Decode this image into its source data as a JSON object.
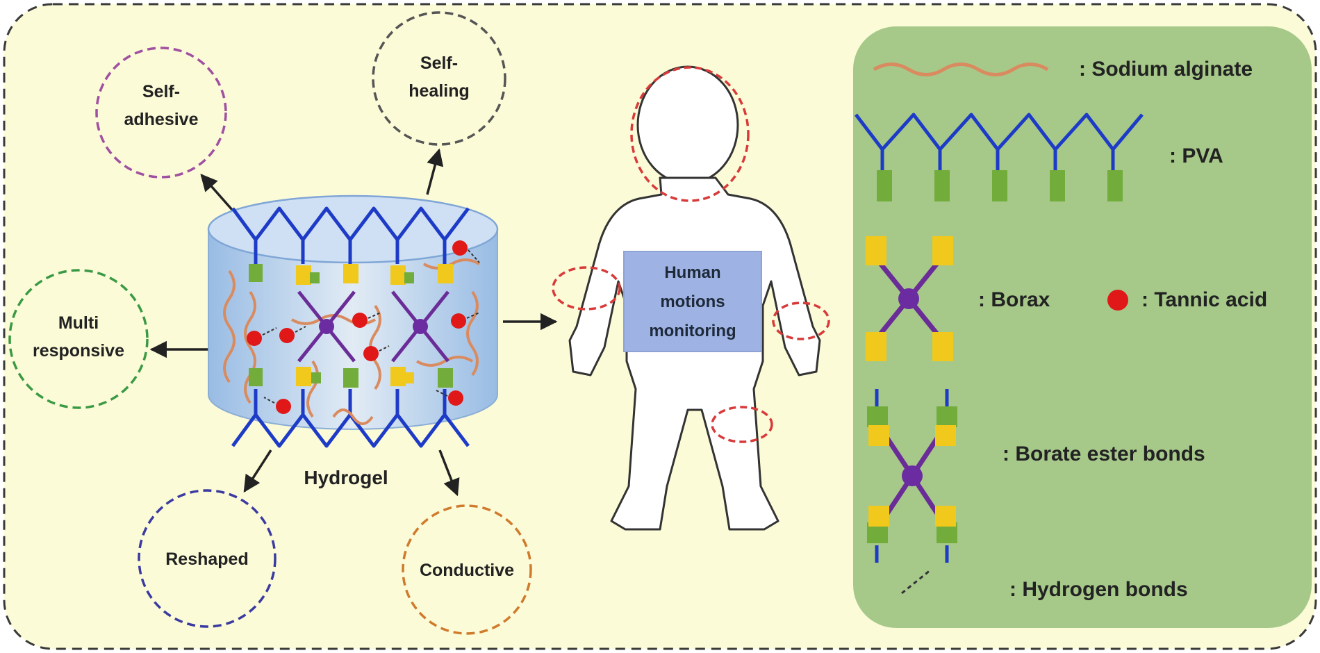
{
  "features": {
    "self_adhesive": [
      "Self-",
      "adhesive"
    ],
    "self_healing": [
      "Self-",
      "healing"
    ],
    "multi_responsive": [
      "Multi",
      "responsive"
    ],
    "reshaped": [
      "Reshaped"
    ],
    "conductive": [
      "Conductive"
    ]
  },
  "hydrogel_label": "Hydrogel",
  "center_label": [
    "Human",
    "motions",
    "monitoring"
  ],
  "legend": {
    "sodium_alginate": ": Sodium alginate",
    "pva": ": PVA",
    "borax": ": Borax",
    "tannic_acid": ": Tannic acid",
    "borate_ester": ": Borate ester bonds",
    "hydrogen_bonds": ": Hydrogen bonds"
  },
  "colors": {
    "background": "#fcfbd8",
    "legend_panel": "#a6c98a",
    "pva_chain": "#1d3bc7",
    "alginate": "#d98b5f",
    "borax_cross": "#6a2c97",
    "borax_node": "#6a2ca0",
    "borate_yellow": "#f1c81c",
    "borate_green": "#72ac3a",
    "tannic_acid": "#e01818",
    "ring_adhesive": "#a050a0",
    "ring_healing": "#555555",
    "ring_multi": "#3a9a44",
    "ring_reshaped": "#3a3aa0",
    "ring_conductive": "#d07a2c",
    "monitor_ring": "#d83a3a"
  }
}
